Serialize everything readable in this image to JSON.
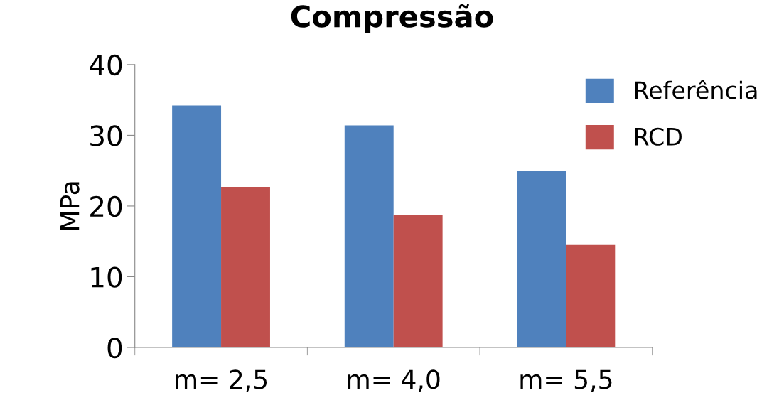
{
  "chart_data": {
    "type": "bar",
    "title": "Compressão",
    "ylabel": "MPa",
    "categories": [
      "m= 2,5",
      "m= 4,0",
      "m= 5,5"
    ],
    "series": [
      {
        "name": "Referência",
        "color": "#4f81bd",
        "values": [
          34.2,
          31.4,
          25.0
        ]
      },
      {
        "name": "RCD",
        "color": "#c0504d",
        "values": [
          22.7,
          18.7,
          14.5
        ]
      }
    ],
    "ylim": [
      0,
      40
    ],
    "yticks": [
      0,
      10,
      20,
      30,
      40
    ],
    "grid": false,
    "legend": "top right"
  }
}
